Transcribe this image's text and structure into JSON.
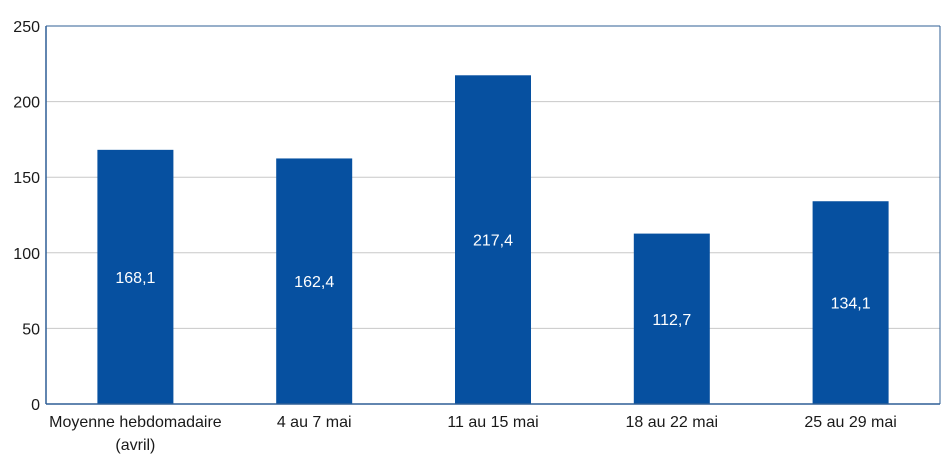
{
  "chart_data": {
    "type": "bar",
    "categories": [
      "Moyenne hebdomadaire (avril)",
      "4 au 7 mai",
      "11 au 15 mai",
      "18 au 22 mai",
      "25 au 29 mai"
    ],
    "category_lines": [
      [
        "Moyenne hebdomadaire",
        "(avril)"
      ],
      [
        "4 au 7 mai"
      ],
      [
        "11 au 15 mai"
      ],
      [
        "18 au 22 mai"
      ],
      [
        "25 au 29 mai"
      ]
    ],
    "values": [
      168.1,
      162.4,
      217.4,
      112.7,
      134.1
    ],
    "value_labels": [
      "168,1",
      "162,4",
      "217,4",
      "112,7",
      "134,1"
    ],
    "ylim": [
      0,
      250
    ],
    "yticks": [
      0,
      50,
      100,
      150,
      200,
      250
    ],
    "title": "",
    "xlabel": "",
    "ylabel": "",
    "grid": true,
    "colors": {
      "bar": "#0650a0",
      "label_text": "#ffffff",
      "grid": "#c8c8c8",
      "axis": "#2f5f96",
      "tick_text": "#1a1a1a"
    }
  }
}
